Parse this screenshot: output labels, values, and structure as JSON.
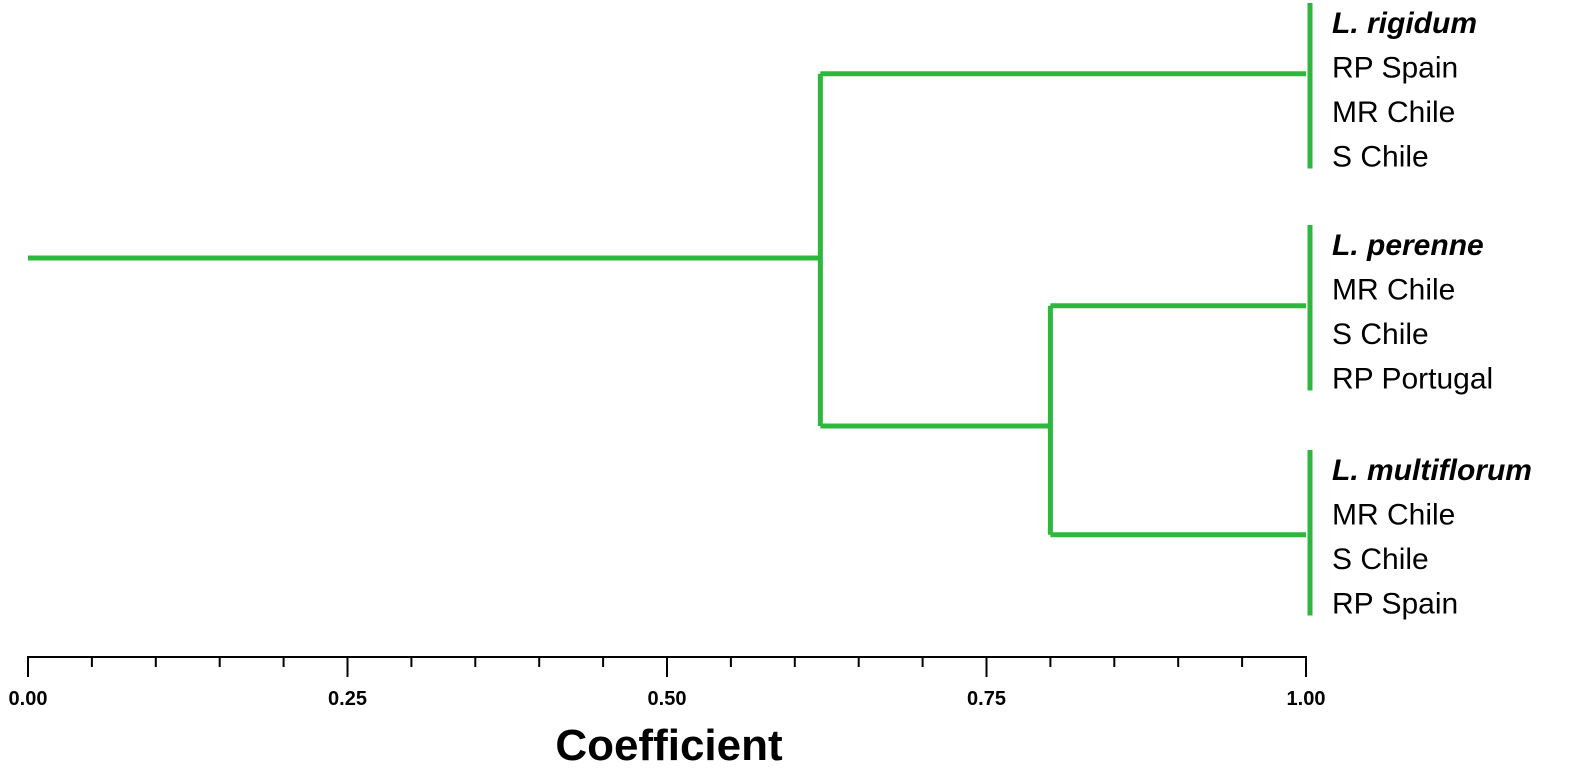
{
  "chart_data": {
    "type": "dendrogram",
    "xlabel": "Coefficient",
    "xlim": [
      0,
      1
    ],
    "ticks": {
      "major": [
        0.0,
        0.25,
        0.5,
        0.75,
        1.0
      ],
      "major_labels": [
        "0.00",
        "0.25",
        "0.50",
        "0.75",
        "1.00"
      ],
      "minor_step": 0.05
    },
    "branch_color": "#2db83d",
    "clusters": [
      {
        "id": "rigidum",
        "species": "L. rigidum",
        "populations": [
          "RP Spain",
          "MR Chile",
          "S Chile"
        ]
      },
      {
        "id": "perenne",
        "species": "L. perenne",
        "populations": [
          "MR Chile",
          "S Chile",
          "RP Portugal"
        ]
      },
      {
        "id": "multiflorum",
        "species": "L. multiflorum",
        "populations": [
          "MR Chile",
          "S Chile",
          "RP Spain"
        ]
      }
    ],
    "merges": [
      {
        "join": [
          "perenne",
          "multiflorum"
        ],
        "coefficient": 0.8
      },
      {
        "join": [
          "rigidum",
          "perenne+multiflorum"
        ],
        "coefficient": 0.62
      }
    ],
    "root_coefficient": 0.0
  }
}
